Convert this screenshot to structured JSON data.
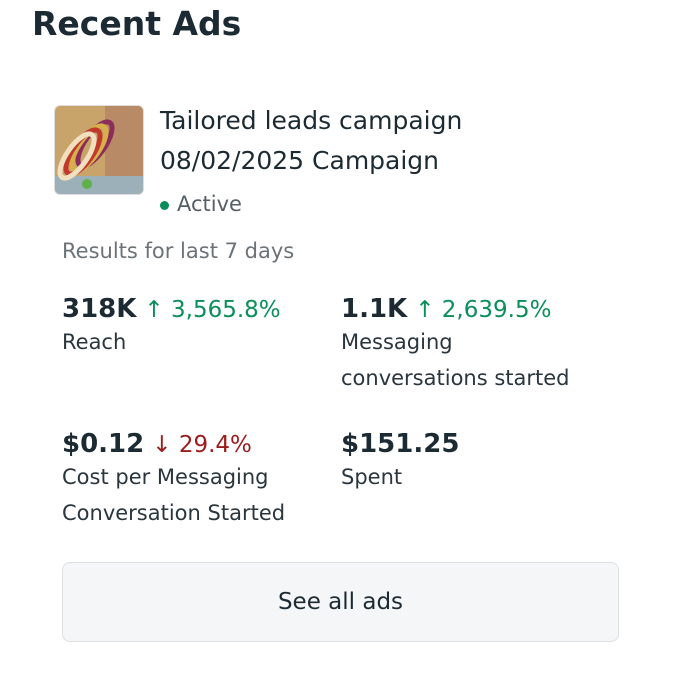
{
  "header": {
    "title": "Recent Ads"
  },
  "ad": {
    "name": "Tailored leads campaign",
    "campaign": "08/02/2025 Campaign",
    "status": "Active"
  },
  "results": {
    "period": "Results for last 7 days",
    "metrics": [
      {
        "value": "318K",
        "change": "↑ 3,565.8%",
        "label": "Reach"
      },
      {
        "value": "1.1K",
        "change": "↑ 2,639.5%",
        "label": "Messaging conversations started"
      },
      {
        "value": "$0.12",
        "change": "↓ 29.4%",
        "label": "Cost per Messaging Conversation Started"
      },
      {
        "value": "$151.25",
        "label": "Spent"
      }
    ]
  },
  "button": {
    "label": "See all ads"
  }
}
